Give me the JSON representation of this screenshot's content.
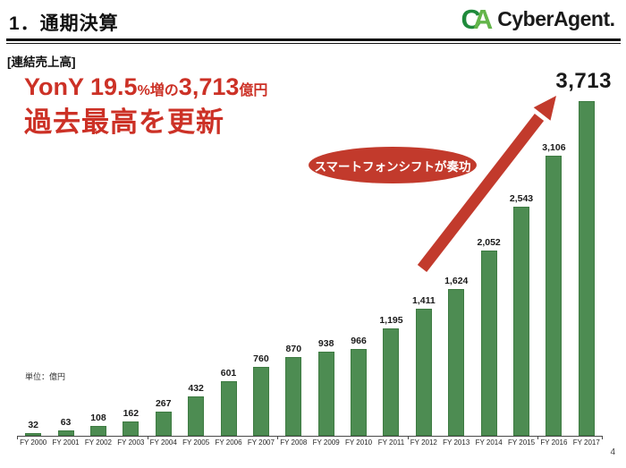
{
  "header": {
    "title": "1．通期決算",
    "logo": {
      "letter_c": "C",
      "letter_a": "A",
      "wordmark": "CyberAgent",
      "trademark": "."
    }
  },
  "section_label": "[連結売上高]",
  "headline": {
    "yony": "YonY 19.5",
    "pct_word": "%増の",
    "amount": "3,713",
    "unit": "億円",
    "record": "過去最高を更新"
  },
  "callout_badge": "スマートフォンシフトが奏功",
  "unit_note": "単位：億円",
  "page_number": "4",
  "colors": {
    "bar_fill": "#4D8C52",
    "bar_border": "#3E7B42",
    "red_text": "#CC3126",
    "red_shape": "#C23A2C",
    "logo_green_dark": "#1F8A3B",
    "logo_green_light": "#63B54A"
  },
  "chart_data": {
    "type": "bar",
    "title": "連結売上高",
    "xlabel": "",
    "ylabel": "億円",
    "ylim": [
      0,
      3713
    ],
    "grid": false,
    "legend": "none",
    "highlight_index": 17,
    "categories": [
      "FY 2000",
      "FY 2001",
      "FY 2002",
      "FY 2003",
      "FY 2004",
      "FY 2005",
      "FY 2006",
      "FY 2007",
      "FY 2008",
      "FY 2009",
      "FY 2010",
      "FY 2011",
      "FY 2012",
      "FY 2013",
      "FY 2014",
      "FY 2015",
      "FY 2016",
      "FY 2017"
    ],
    "values": [
      32,
      63,
      108,
      162,
      267,
      432,
      601,
      760,
      870,
      938,
      966,
      1195,
      1411,
      1624,
      2052,
      2543,
      3106,
      3713
    ],
    "labels": [
      "32",
      "63",
      "108",
      "162",
      "267",
      "432",
      "601",
      "760",
      "870",
      "938",
      "966",
      "1,195",
      "1,411",
      "1,624",
      "2,052",
      "2,543",
      "3,106",
      "3,713"
    ]
  }
}
